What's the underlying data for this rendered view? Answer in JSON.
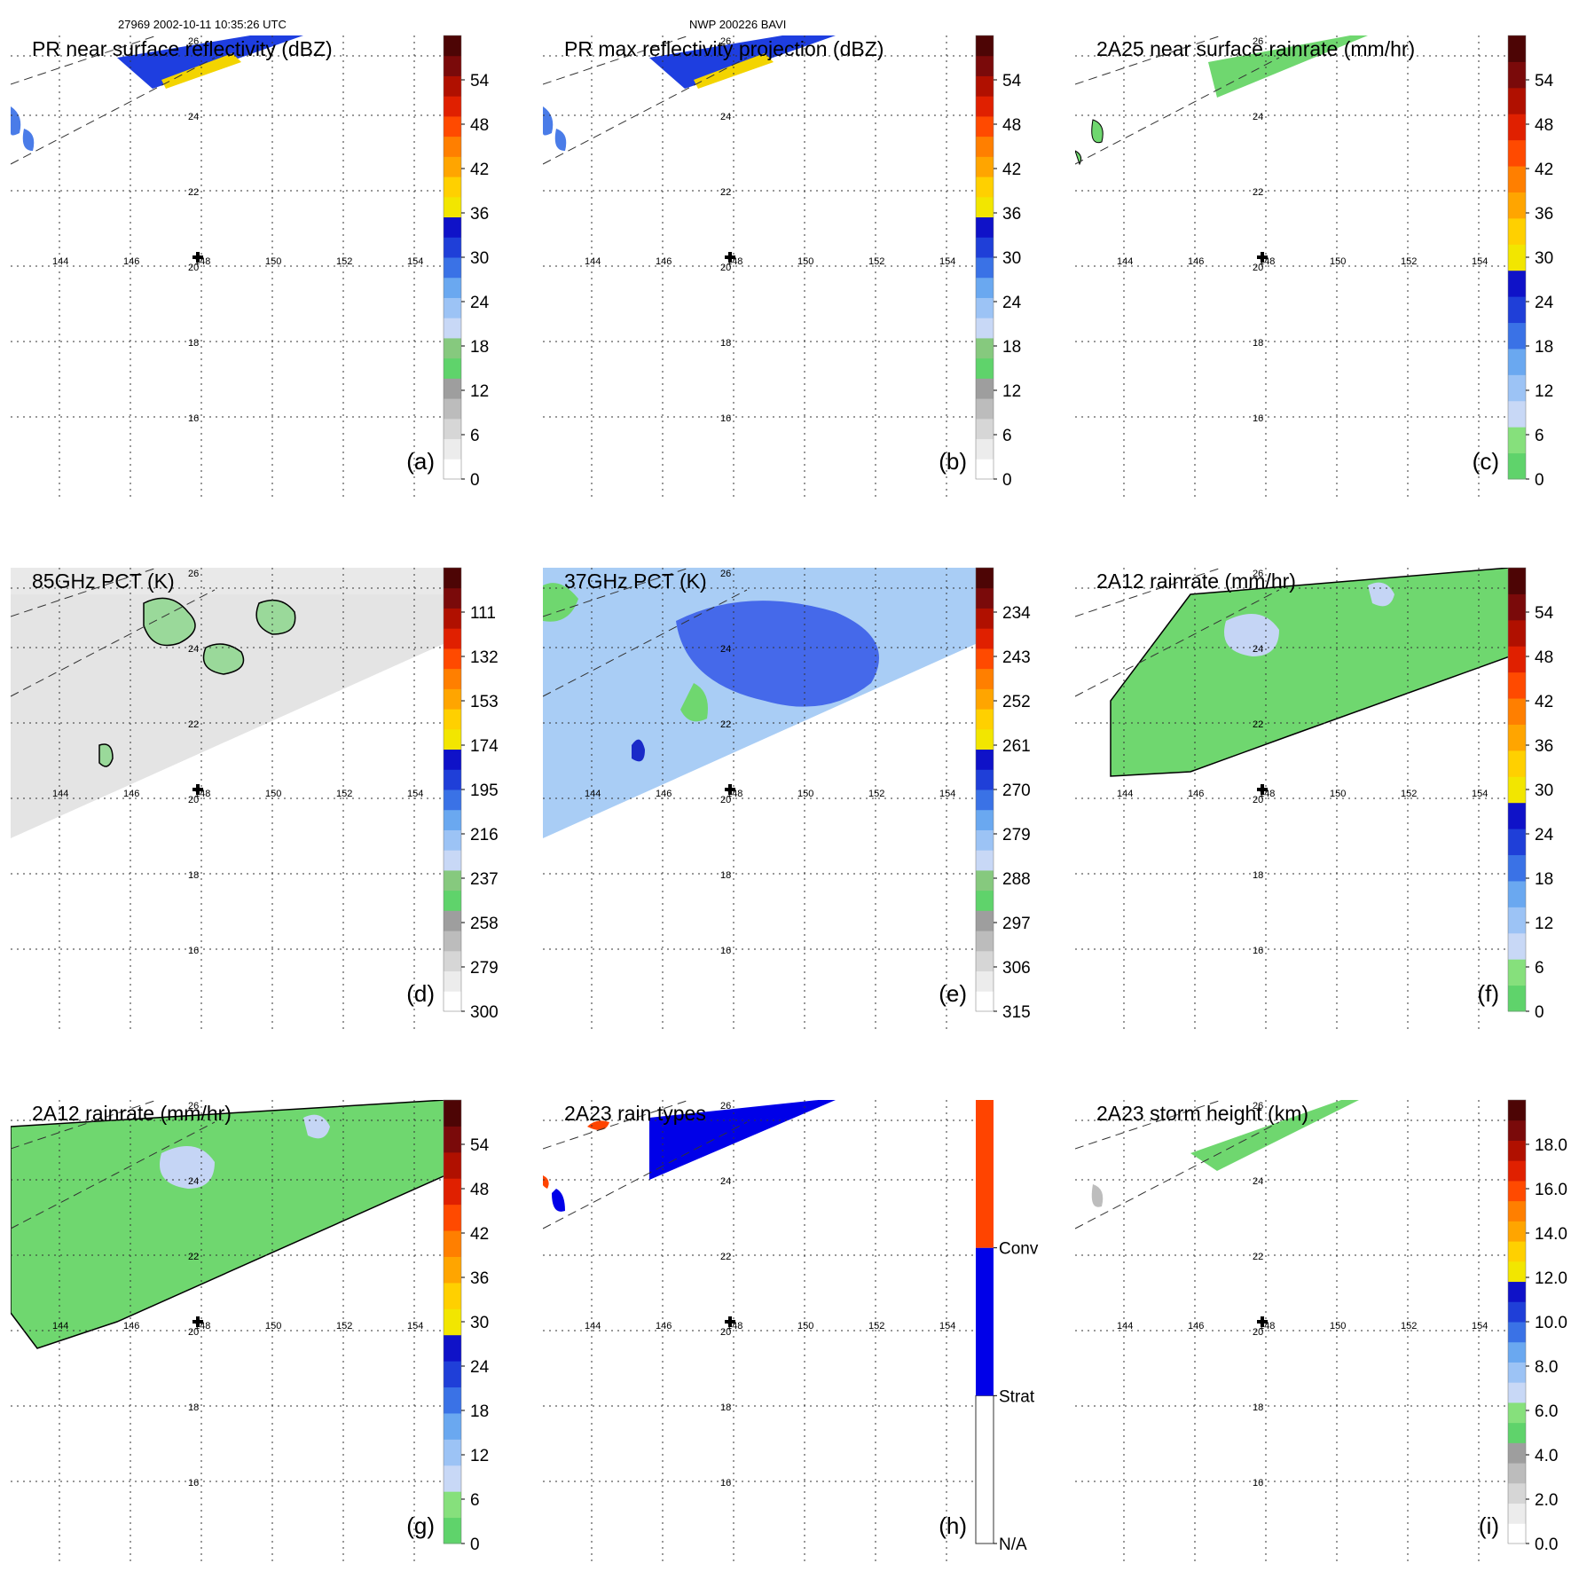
{
  "header": {
    "left": "27969 2002-10-11 10:35:26 UTC",
    "center": "NWP 200226 BAVI"
  },
  "grid": {
    "lon_labels": [
      "144",
      "146",
      "148",
      "150",
      "152",
      "154"
    ],
    "lat_labels": [
      "16",
      "18",
      "20",
      "22",
      "24",
      "26"
    ],
    "center_marker": "plus-icon"
  },
  "panels": [
    {
      "id": "a",
      "title": "PR near surface reflectivity (dBZ)",
      "label": "(a)",
      "colorbar": {
        "ticks": [
          "0",
          "6",
          "12",
          "18",
          "24",
          "30",
          "36",
          "42",
          "48",
          "54"
        ],
        "scheme": "reflectivity"
      },
      "swath": "pr"
    },
    {
      "id": "b",
      "title": "PR max reflectivity projection (dBZ)",
      "label": "(b)",
      "colorbar": {
        "ticks": [
          "0",
          "6",
          "12",
          "18",
          "24",
          "30",
          "36",
          "42",
          "48",
          "54"
        ],
        "scheme": "reflectivity"
      },
      "swath": "pr"
    },
    {
      "id": "c",
      "title": "2A25 near surface rainrate (mm/hr)",
      "label": "(c)",
      "colorbar": {
        "ticks": [
          "0",
          "6",
          "12",
          "18",
          "24",
          "30",
          "36",
          "42",
          "48",
          "54"
        ],
        "scheme": "rainrate"
      },
      "swath": "pr"
    },
    {
      "id": "d",
      "title": "85GHz PCT (K)",
      "label": "(d)",
      "colorbar": {
        "ticks": [
          "300",
          "279",
          "258",
          "237",
          "216",
          "195",
          "174",
          "153",
          "132",
          "111"
        ],
        "scheme": "reflectivity"
      },
      "swath": "tmi"
    },
    {
      "id": "e",
      "title": "37GHz PCT (K)",
      "label": "(e)",
      "colorbar": {
        "ticks": [
          "315",
          "306",
          "297",
          "288",
          "279",
          "270",
          "261",
          "252",
          "243",
          "234"
        ],
        "scheme": "reflectivity"
      },
      "swath": "tmi"
    },
    {
      "id": "f",
      "title": "2A12 rainrate (mm/hr)",
      "label": "(f)",
      "colorbar": {
        "ticks": [
          "0",
          "6",
          "12",
          "18",
          "24",
          "30",
          "36",
          "42",
          "48",
          "54"
        ],
        "scheme": "rainrate"
      },
      "swath": "tmi"
    },
    {
      "id": "g",
      "title": "2A12 rainrate (mm/hr)",
      "label": "(g)",
      "colorbar": {
        "ticks": [
          "0",
          "6",
          "12",
          "18",
          "24",
          "30",
          "36",
          "42",
          "48",
          "54"
        ],
        "scheme": "rainrate"
      },
      "swath": "tmi"
    },
    {
      "id": "h",
      "title": "2A23 rain types",
      "label": "(h)",
      "colorbar": {
        "ticks": [
          "N/A",
          "Strat",
          "Conv"
        ],
        "scheme": "raintype"
      },
      "swath": "pr"
    },
    {
      "id": "i",
      "title": "2A23 storm height (km)",
      "label": "(i)",
      "colorbar": {
        "ticks": [
          "0.0",
          "2.0",
          "4.0",
          "6.0",
          "8.0",
          "10.0",
          "12.0",
          "14.0",
          "16.0",
          "18.0"
        ],
        "scheme": "height"
      },
      "swath": "pr"
    }
  ],
  "colors": {
    "reflectivity": [
      "#ffffff",
      "#ececec",
      "#d6d6d6",
      "#bcbcbc",
      "#9e9e9e",
      "#5fd36b",
      "#86c97e",
      "#c8d8f6",
      "#9cc3f5",
      "#6aa8f0",
      "#3a72e6",
      "#1f3fd8",
      "#0f12c8",
      "#f2e600",
      "#ffd000",
      "#ffa500",
      "#ff7f00",
      "#ff4a00",
      "#e02000",
      "#b01000",
      "#7a0a0a",
      "#4d0505"
    ],
    "rainrate": [
      "#5fd36b",
      "#86e07c",
      "#c8d8f6",
      "#9cc3f5",
      "#6aa8f0",
      "#3a72e6",
      "#1f3fd8",
      "#0f12c8",
      "#f2e600",
      "#ffd000",
      "#ffa500",
      "#ff7f00",
      "#ff4a00",
      "#e02000",
      "#b01000",
      "#7a0a0a",
      "#4d0505"
    ],
    "height": [
      "#ffffff",
      "#ececec",
      "#d6d6d6",
      "#bcbcbc",
      "#9e9e9e",
      "#5fd36b",
      "#86e07c",
      "#c8d8f6",
      "#9cc3f5",
      "#6aa8f0",
      "#3a72e6",
      "#1f3fd8",
      "#0f12c8",
      "#f2e600",
      "#ffd000",
      "#ffa500",
      "#ff7f00",
      "#ff4a00",
      "#e02000",
      "#b01000",
      "#7a0a0a",
      "#4d0505"
    ],
    "raintype": [
      "#ffffff",
      "#0000e8",
      "#ff4400"
    ],
    "swath_green": "#6fd76f",
    "swath_lightblue": "#a9cdf5",
    "swath_blue": "#1e3ee0",
    "swath_gray": "#e4e4e4",
    "swath_yellow": "#f3d400",
    "contour": "#000000"
  }
}
